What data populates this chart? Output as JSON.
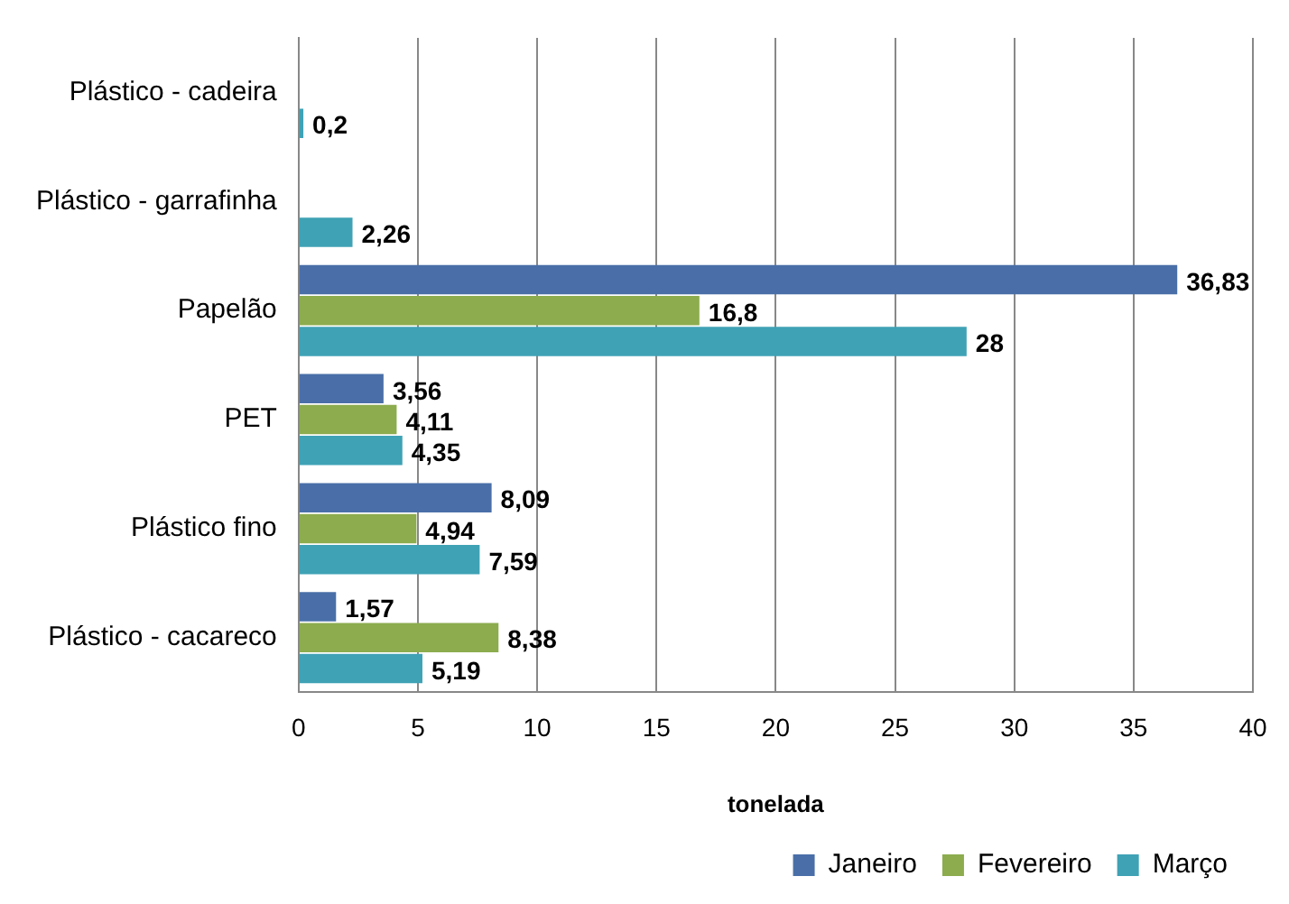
{
  "chart_data": {
    "type": "bar",
    "orientation": "horizontal",
    "xlabel": "tonelada",
    "categories": [
      "Plástico - cadeira",
      "Plástico - garrafinha",
      "Papelão",
      "PET",
      "Plástico fino",
      "Plástico - cacareco"
    ],
    "series": [
      {
        "name": "Janeiro",
        "color": "#4a6fa8",
        "values": [
          null,
          null,
          36.83,
          3.56,
          8.09,
          1.57
        ],
        "value_labels": [
          null,
          null,
          "36,83",
          "3,56",
          "8,09",
          "1,57"
        ]
      },
      {
        "name": "Fevereiro",
        "color": "#8cac4e",
        "values": [
          null,
          null,
          16.8,
          4.11,
          4.94,
          8.38
        ],
        "value_labels": [
          null,
          null,
          "16,8",
          "4,11",
          "4,94",
          "8,38"
        ]
      },
      {
        "name": "Março",
        "color": "#3fa2b5",
        "values": [
          0.2,
          2.26,
          28,
          4.35,
          7.59,
          5.19
        ],
        "value_labels": [
          "0,2",
          "2,26",
          "28",
          "4,35",
          "7,59",
          "5,19"
        ]
      }
    ],
    "xlim": [
      0,
      40
    ],
    "xticks": [
      0,
      5,
      10,
      15,
      20,
      25,
      30,
      35,
      40
    ],
    "grid": "x",
    "legend": "bottom right"
  }
}
